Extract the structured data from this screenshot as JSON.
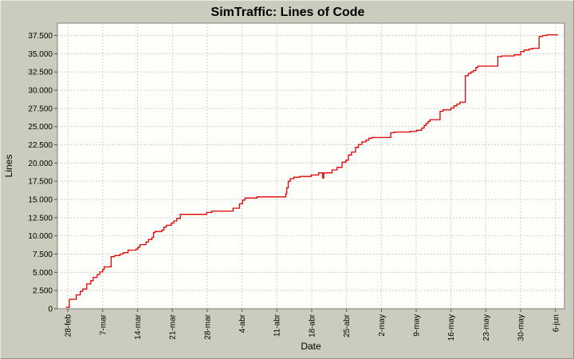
{
  "window": {
    "background": "#cbccbd",
    "plot_background": "#fefefa",
    "grid_color": "#cfcfcf",
    "frame_color": "#7e7e7e",
    "tick_color": "#555555"
  },
  "chart_data": {
    "type": "line",
    "style": "step",
    "title": "SimTraffic: Lines of Code",
    "xlabel": "Date",
    "ylabel": "Lines",
    "series_color": "#e00000",
    "grid": true,
    "legend": "none",
    "x_axis": {
      "tick_labels": [
        "28-feb",
        "7-mar",
        "14-mar",
        "21-mar",
        "28-mar",
        "4-abr",
        "11-abr",
        "18-abr",
        "25-abr",
        "2-may",
        "9-may",
        "16-may",
        "23-may",
        "30-may",
        "6-jun"
      ],
      "tick_days": [
        0,
        7,
        14,
        21,
        28,
        35,
        42,
        49,
        56,
        63,
        70,
        77,
        84,
        91,
        98
      ],
      "lim_days": [
        -2.1,
        99.8
      ]
    },
    "y_axis": {
      "tick_labels": [
        "0",
        "2.500",
        "5.000",
        "7.500",
        "10.000",
        "12.500",
        "15.000",
        "17.500",
        "20.000",
        "22.500",
        "25.000",
        "27.500",
        "30.000",
        "32.500",
        "35.000",
        "37.500"
      ],
      "tick_values": [
        0,
        2500,
        5000,
        7500,
        10000,
        12500,
        15000,
        17500,
        20000,
        22500,
        25000,
        27500,
        30000,
        32500,
        35000,
        37500
      ],
      "lim": [
        0,
        39200
      ]
    },
    "points_day_lines": [
      [
        -0.4,
        200
      ],
      [
        0.3,
        1300
      ],
      [
        1.7,
        1900
      ],
      [
        2.5,
        2400
      ],
      [
        3.0,
        2700
      ],
      [
        3.8,
        3400
      ],
      [
        4.6,
        3850
      ],
      [
        5.1,
        4300
      ],
      [
        5.9,
        4700
      ],
      [
        6.4,
        5050
      ],
      [
        7.0,
        5400
      ],
      [
        7.3,
        5750
      ],
      [
        8.7,
        7150
      ],
      [
        9.4,
        7300
      ],
      [
        10.5,
        7500
      ],
      [
        11.1,
        7700
      ],
      [
        12.1,
        8050
      ],
      [
        13.7,
        8200
      ],
      [
        14.1,
        8450
      ],
      [
        14.5,
        8800
      ],
      [
        15.7,
        9150
      ],
      [
        16.2,
        9500
      ],
      [
        16.9,
        9800
      ],
      [
        17.2,
        10450
      ],
      [
        17.5,
        10600
      ],
      [
        18.9,
        10800
      ],
      [
        19.3,
        11200
      ],
      [
        19.8,
        11450
      ],
      [
        20.8,
        11750
      ],
      [
        21.3,
        12050
      ],
      [
        21.9,
        12400
      ],
      [
        22.6,
        12950
      ],
      [
        27.9,
        13200
      ],
      [
        28.9,
        13400
      ],
      [
        33.2,
        13800
      ],
      [
        34.5,
        14400
      ],
      [
        35.1,
        14900
      ],
      [
        35.6,
        15200
      ],
      [
        38.0,
        15350
      ],
      [
        43.8,
        15800
      ],
      [
        44.0,
        16600
      ],
      [
        44.3,
        17500
      ],
      [
        44.7,
        17850
      ],
      [
        45.4,
        18050
      ],
      [
        46.6,
        18150
      ],
      [
        48.9,
        18350
      ],
      [
        50.4,
        18650
      ],
      [
        51.2,
        17950
      ],
      [
        51.45,
        18650
      ],
      [
        53.1,
        19050
      ],
      [
        54.1,
        19400
      ],
      [
        55.1,
        20100
      ],
      [
        55.9,
        20400
      ],
      [
        56.4,
        21100
      ],
      [
        57.0,
        21500
      ],
      [
        57.8,
        22150
      ],
      [
        58.4,
        22550
      ],
      [
        59.1,
        22900
      ],
      [
        59.9,
        23150
      ],
      [
        60.5,
        23400
      ],
      [
        61.1,
        23500
      ],
      [
        64.9,
        24150
      ],
      [
        65.6,
        24250
      ],
      [
        68.8,
        24350
      ],
      [
        70.1,
        24500
      ],
      [
        71.1,
        24800
      ],
      [
        71.6,
        25150
      ],
      [
        72.0,
        25450
      ],
      [
        72.4,
        25700
      ],
      [
        72.8,
        25950
      ],
      [
        74.8,
        27100
      ],
      [
        75.4,
        27300
      ],
      [
        77.0,
        27550
      ],
      [
        77.6,
        27850
      ],
      [
        78.2,
        28100
      ],
      [
        78.8,
        28350
      ],
      [
        79.9,
        32000
      ],
      [
        80.5,
        32300
      ],
      [
        81.0,
        32500
      ],
      [
        81.5,
        32700
      ],
      [
        82.0,
        33100
      ],
      [
        82.4,
        33300
      ],
      [
        86.4,
        34600
      ],
      [
        87.2,
        34700
      ],
      [
        89.7,
        34850
      ],
      [
        91.0,
        35300
      ],
      [
        91.7,
        35500
      ],
      [
        92.7,
        35650
      ],
      [
        93.4,
        35750
      ],
      [
        94.7,
        37350
      ],
      [
        95.4,
        37500
      ],
      [
        96.3,
        37600
      ],
      [
        98.4,
        37650
      ]
    ]
  }
}
